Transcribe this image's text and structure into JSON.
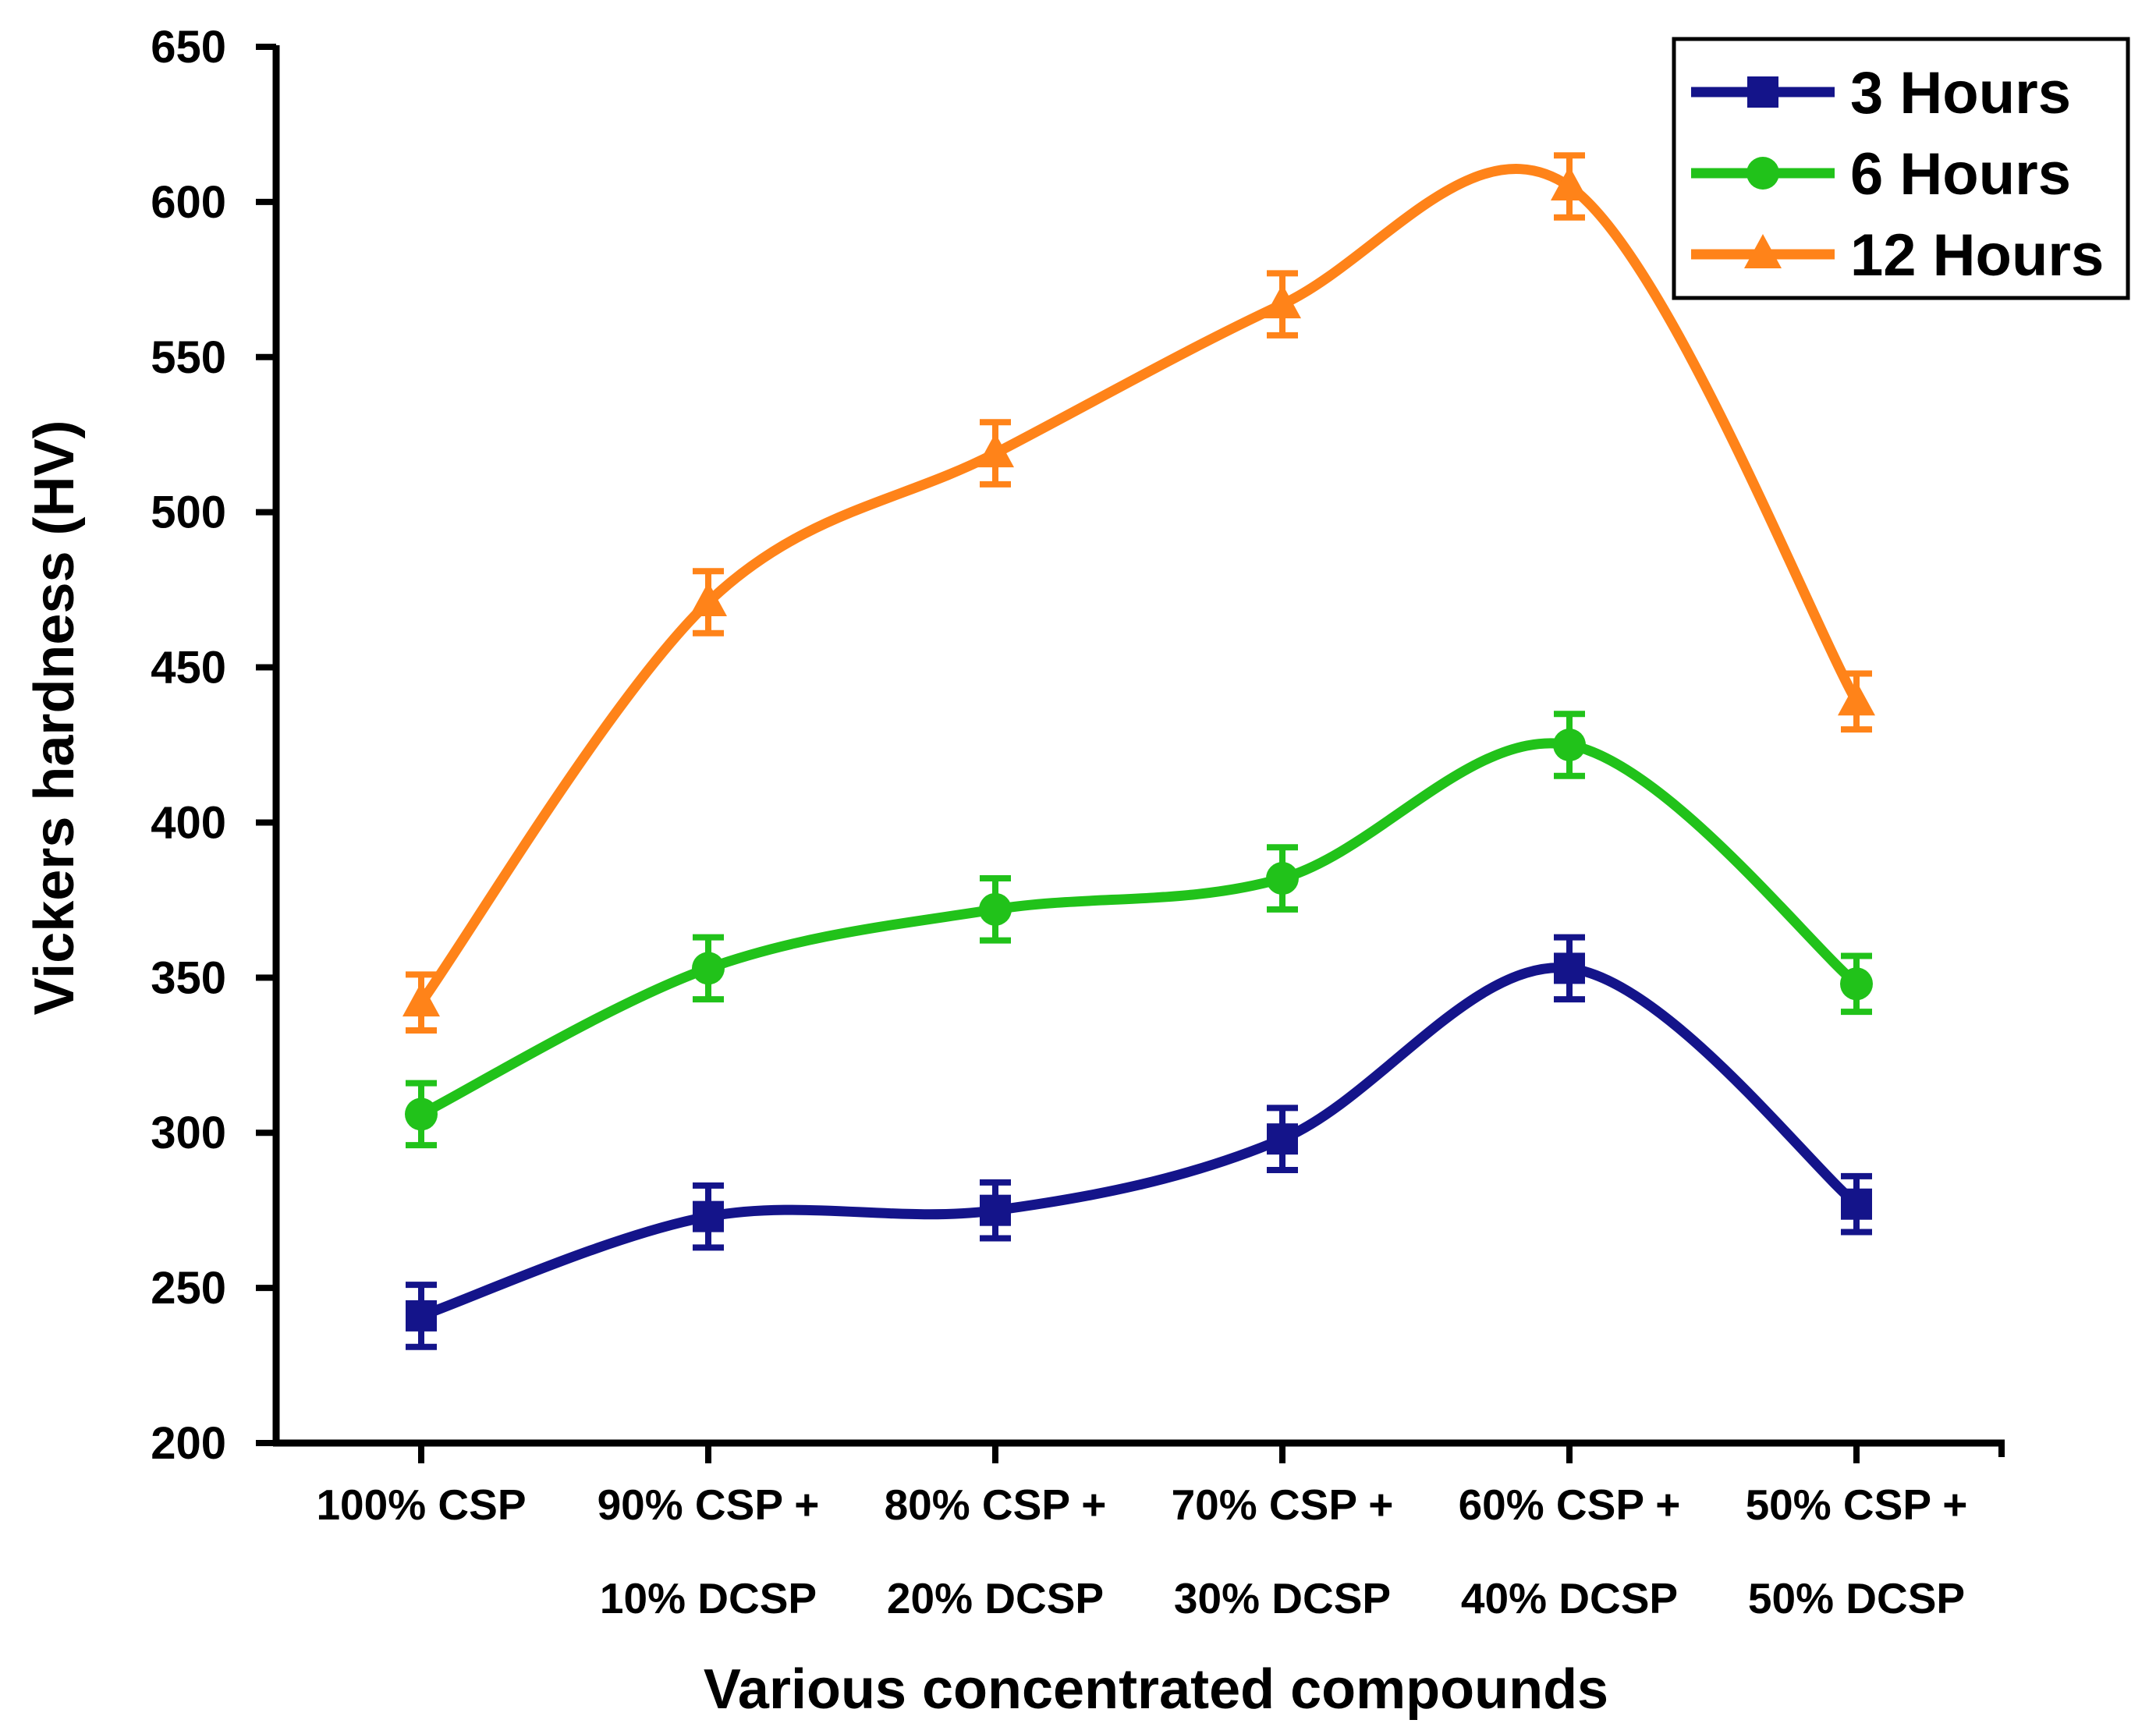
{
  "chart_data": {
    "type": "line",
    "title": "",
    "xlabel": "Various concentrated compounds",
    "ylabel": "Vickers hardness (HV)",
    "ylim": [
      200,
      650
    ],
    "yticks": [
      200,
      250,
      300,
      350,
      400,
      450,
      500,
      550,
      600,
      650
    ],
    "ytick_labels": [
      "200",
      "250",
      "300",
      "350",
      "400",
      "450",
      "500",
      "550",
      "600",
      "650"
    ],
    "categories": [
      {
        "line1": "100% CSP",
        "line2": ""
      },
      {
        "line1": "90% CSP +",
        "line2": "10% DCSP"
      },
      {
        "line1": "80% CSP +",
        "line2": "20% DCSP"
      },
      {
        "line1": "70% CSP +",
        "line2": "30% DCSP"
      },
      {
        "line1": "60% CSP +",
        "line2": "40% DCSP"
      },
      {
        "line1": "50% CSP +",
        "line2": "50% DCSP"
      }
    ],
    "legend_position": "top-right",
    "grid": false,
    "series": [
      {
        "name": "3 Hours",
        "color": "#14148a",
        "marker": "square",
        "values": [
          241,
          273,
          275,
          298,
          353,
          277
        ],
        "errors": [
          10,
          10,
          9,
          10,
          10,
          9
        ]
      },
      {
        "name": "6 Hours",
        "color": "#21c21a",
        "marker": "circle",
        "values": [
          306,
          353,
          372,
          382,
          425,
          348
        ],
        "errors": [
          10,
          10,
          10,
          10,
          10,
          9
        ]
      },
      {
        "name": "12 Hours",
        "color": "#ff8319",
        "marker": "triangle",
        "values": [
          342,
          471,
          519,
          567,
          605,
          439
        ],
        "errors": [
          9,
          10,
          10,
          10,
          10,
          9
        ]
      }
    ]
  }
}
